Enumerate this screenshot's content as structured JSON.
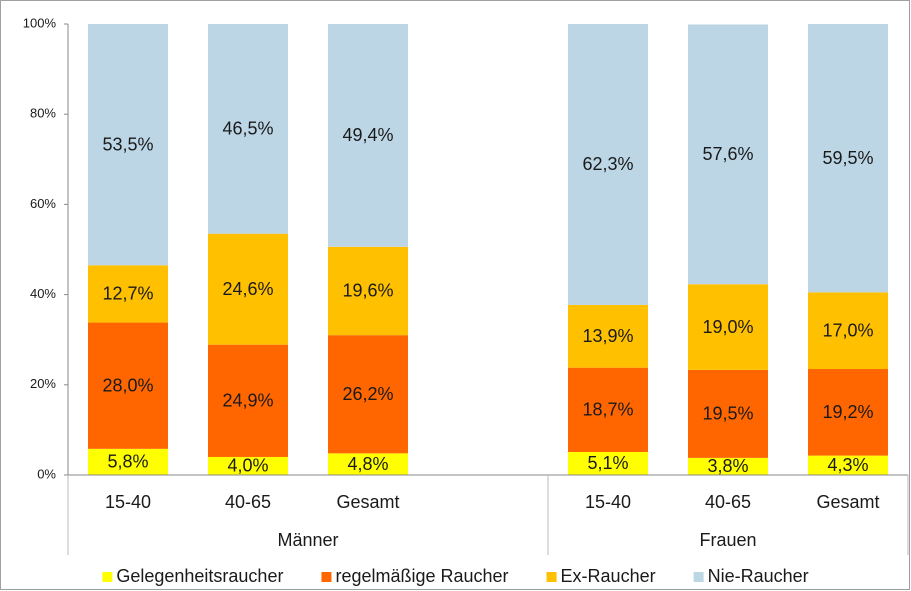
{
  "chart_data": {
    "type": "stacked_bar",
    "categories": [
      "15-40",
      "40-65",
      "Gesamt",
      null,
      "15-40",
      "40-65",
      "Gesamt"
    ],
    "group_labels": [
      "Männer",
      "Frauen"
    ],
    "series": [
      {
        "name": "Gelegenheitsraucher",
        "color": "#ffff00",
        "values": [
          5.8,
          4.0,
          4.8,
          null,
          5.1,
          3.8,
          4.3
        ],
        "value_labels": [
          "5,8%",
          "4,0%",
          "4,8%",
          null,
          "5,1%",
          "3,8%",
          "4,3%"
        ]
      },
      {
        "name": "regelmäßige Raucher",
        "color": "#ff6600",
        "values": [
          28.0,
          24.9,
          26.2,
          null,
          18.7,
          19.5,
          19.2
        ],
        "value_labels": [
          "28,0%",
          "24,9%",
          "26,2%",
          null,
          "18,7%",
          "19,5%",
          "19,2%"
        ]
      },
      {
        "name": "Ex-Raucher",
        "color": "#ffc000",
        "values": [
          12.7,
          24.6,
          19.6,
          null,
          13.9,
          19.0,
          17.0
        ],
        "value_labels": [
          "12,7%",
          "24,6%",
          "19,6%",
          null,
          "13,9%",
          "19,0%",
          "17,0%"
        ]
      },
      {
        "name": "Nie-Raucher",
        "color": "#bcd6e6",
        "values": [
          53.5,
          46.5,
          49.4,
          null,
          62.3,
          57.6,
          59.5
        ],
        "value_labels": [
          "53,5%",
          "46,5%",
          "49,4%",
          null,
          "62,3%",
          "57,6%",
          "59,5%"
        ]
      }
    ],
    "ylim": [
      0,
      100
    ],
    "yticks": [
      {
        "value": 0,
        "label": "0%"
      },
      {
        "value": 20,
        "label": "20%"
      },
      {
        "value": 40,
        "label": "40%"
      },
      {
        "value": 60,
        "label": "60%"
      },
      {
        "value": 80,
        "label": "80%"
      },
      {
        "value": 100,
        "label": "100%"
      }
    ],
    "legend": "bottom"
  }
}
